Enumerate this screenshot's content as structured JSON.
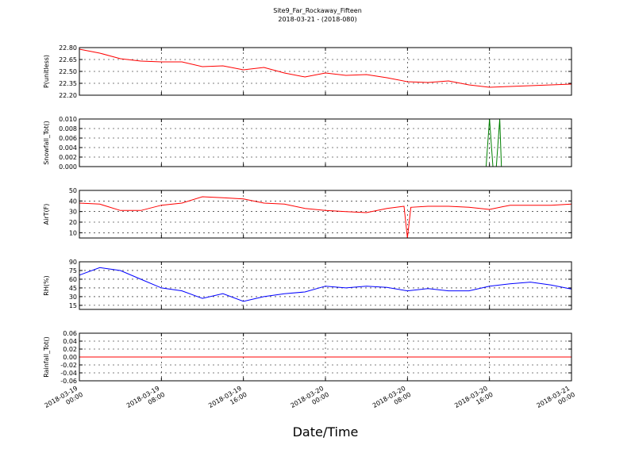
{
  "title": "Site9_Far_Rockaway_Fifteen",
  "subtitle": "2018-03-21 - (2018-080)",
  "xlabel": "Date/Time",
  "chart_data": [
    {
      "type": "line",
      "ylabel": "P(unitless)",
      "ylim": [
        22.2,
        22.8
      ],
      "yticks": [
        {
          "value": 22.2,
          "label": "22.20"
        },
        {
          "value": 22.35,
          "label": "22.35"
        },
        {
          "value": 22.5,
          "label": "22.50"
        },
        {
          "value": 22.65,
          "label": "22.65"
        },
        {
          "value": 22.8,
          "label": "22.80"
        }
      ],
      "grid": true,
      "x": [
        "2018-03-19 00:00",
        "2018-03-19 02:00",
        "2018-03-19 04:00",
        "2018-03-19 06:00",
        "2018-03-19 08:00",
        "2018-03-19 10:00",
        "2018-03-19 12:00",
        "2018-03-19 14:00",
        "2018-03-19 16:00",
        "2018-03-19 18:00",
        "2018-03-19 20:00",
        "2018-03-19 22:00",
        "2018-03-20 00:00",
        "2018-03-20 02:00",
        "2018-03-20 04:00",
        "2018-03-20 06:00",
        "2018-03-20 08:00",
        "2018-03-20 10:00",
        "2018-03-20 12:00",
        "2018-03-20 14:00",
        "2018-03-20 16:00",
        "2018-03-20 18:00",
        "2018-03-20 20:00",
        "2018-03-20 22:00",
        "2018-03-21 00:00"
      ],
      "series": [
        {
          "color": "#ff0000",
          "values": [
            22.78,
            22.73,
            22.66,
            22.63,
            22.62,
            22.62,
            22.56,
            22.57,
            22.52,
            22.55,
            22.48,
            22.43,
            22.48,
            22.45,
            22.46,
            22.42,
            22.37,
            22.36,
            22.38,
            22.33,
            22.3,
            22.31,
            22.32,
            22.33,
            22.34
          ]
        }
      ]
    },
    {
      "type": "line",
      "ylabel": "Snowfall_Tot()",
      "ylim": [
        0,
        0.01
      ],
      "yticks": [
        {
          "value": 0,
          "label": "0.000"
        },
        {
          "value": 0.002,
          "label": "0.002"
        },
        {
          "value": 0.004,
          "label": "0.004"
        },
        {
          "value": 0.006,
          "label": "0.006"
        },
        {
          "value": 0.008,
          "label": "0.008"
        },
        {
          "value": 0.01,
          "label": "0.010"
        }
      ],
      "grid": true,
      "x": [
        "2018-03-19 00:00",
        "2018-03-20 15:40",
        "2018-03-20 16:00",
        "2018-03-20 16:20",
        "2018-03-20 16:40",
        "2018-03-20 17:00",
        "2018-03-20 17:10",
        "2018-03-21 00:00"
      ],
      "series": [
        {
          "color": "#007f00",
          "values": [
            0,
            0,
            0.01,
            0,
            0,
            0.01,
            0,
            0
          ]
        }
      ]
    },
    {
      "type": "line",
      "ylabel": "AirT(F)",
      "ylim": [
        5,
        50
      ],
      "yticks": [
        10,
        20,
        30,
        40,
        50
      ],
      "grid": true,
      "x": [
        "2018-03-19 00:00",
        "2018-03-19 02:00",
        "2018-03-19 04:00",
        "2018-03-19 06:00",
        "2018-03-19 08:00",
        "2018-03-19 10:00",
        "2018-03-19 12:00",
        "2018-03-19 14:00",
        "2018-03-19 16:00",
        "2018-03-19 18:00",
        "2018-03-19 20:00",
        "2018-03-19 22:00",
        "2018-03-20 00:00",
        "2018-03-20 02:00",
        "2018-03-20 04:00",
        "2018-03-20 06:00",
        "2018-03-20 07:40",
        "2018-03-20 08:00",
        "2018-03-20 08:20",
        "2018-03-20 10:00",
        "2018-03-20 12:00",
        "2018-03-20 14:00",
        "2018-03-20 16:00",
        "2018-03-20 18:00",
        "2018-03-20 20:00",
        "2018-03-20 22:00",
        "2018-03-21 00:00"
      ],
      "series": [
        {
          "color": "#ff0000",
          "values": [
            38,
            37,
            31,
            31,
            36,
            38,
            44,
            43,
            42,
            38,
            37,
            33,
            31,
            30,
            29,
            33,
            35,
            5,
            34,
            35,
            35,
            34,
            32,
            36,
            36,
            36,
            37
          ]
        }
      ]
    },
    {
      "type": "line",
      "ylabel": "RH(%)",
      "ylim": [
        8,
        90
      ],
      "yticks": [
        15,
        30,
        45,
        60,
        75,
        90
      ],
      "grid": true,
      "x": [
        "2018-03-19 00:00",
        "2018-03-19 02:00",
        "2018-03-19 04:00",
        "2018-03-19 06:00",
        "2018-03-19 08:00",
        "2018-03-19 10:00",
        "2018-03-19 12:00",
        "2018-03-19 14:00",
        "2018-03-19 16:00",
        "2018-03-19 18:00",
        "2018-03-19 20:00",
        "2018-03-19 22:00",
        "2018-03-20 00:00",
        "2018-03-20 02:00",
        "2018-03-20 04:00",
        "2018-03-20 06:00",
        "2018-03-20 08:00",
        "2018-03-20 10:00",
        "2018-03-20 12:00",
        "2018-03-20 14:00",
        "2018-03-20 16:00",
        "2018-03-20 18:00",
        "2018-03-20 20:00",
        "2018-03-20 22:00",
        "2018-03-21 00:00"
      ],
      "series": [
        {
          "color": "#0000ff",
          "values": [
            67,
            80,
            75,
            60,
            45,
            40,
            27,
            35,
            22,
            30,
            35,
            38,
            48,
            45,
            48,
            46,
            40,
            44,
            40,
            40,
            48,
            52,
            55,
            50,
            43
          ]
        }
      ]
    },
    {
      "type": "line",
      "ylabel": "Rainfall_Tot()",
      "ylim": [
        -0.06,
        0.06
      ],
      "yticks": [
        {
          "value": -0.06,
          "label": "-0.06"
        },
        {
          "value": -0.04,
          "label": "-0.04"
        },
        {
          "value": -0.02,
          "label": "-0.02"
        },
        {
          "value": 0,
          "label": "0.00"
        },
        {
          "value": 0.02,
          "label": "0.02"
        },
        {
          "value": 0.04,
          "label": "0.04"
        },
        {
          "value": 0.06,
          "label": "0.06"
        }
      ],
      "grid": true,
      "x": [
        "2018-03-19 00:00",
        "2018-03-21 00:00"
      ],
      "series": [
        {
          "color": "#ff0000",
          "values": [
            0,
            0
          ]
        }
      ],
      "xlim": [
        "2018-03-19 00:00",
        "2018-03-21 00:00"
      ],
      "xticks": [
        {
          "value": "2018-03-19 00:00",
          "label": [
            "2018-03-19",
            "00:00"
          ]
        },
        {
          "value": "2018-03-19 08:00",
          "label": [
            "2018-03-19",
            "08:00"
          ]
        },
        {
          "value": "2018-03-19 16:00",
          "label": [
            "2018-03-19",
            "16:00"
          ]
        },
        {
          "value": "2018-03-20 00:00",
          "label": [
            "2018-03-20",
            "00:00"
          ]
        },
        {
          "value": "2018-03-20 08:00",
          "label": [
            "2018-03-20",
            "08:00"
          ]
        },
        {
          "value": "2018-03-20 16:00",
          "label": [
            "2018-03-20",
            "16:00"
          ]
        },
        {
          "value": "2018-03-21 00:00",
          "label": [
            "2018-03-21",
            "00:00"
          ]
        }
      ]
    }
  ]
}
